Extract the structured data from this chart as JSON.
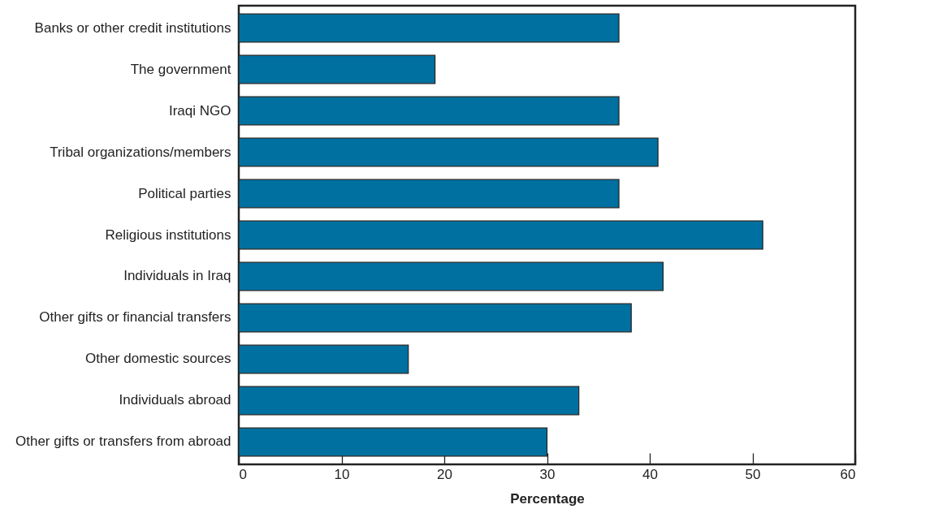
{
  "chart_data": {
    "type": "bar",
    "orientation": "horizontal",
    "xlabel": "Percentage",
    "categories": [
      "Banks or other credit institutions",
      "The government",
      "Iraqi NGO",
      "Tribal organizations/members",
      "Political parties",
      "Religious institutions",
      "Individuals in Iraq",
      "Other gifts or financial transfers",
      "Other domestic sources",
      "Individuals abroad",
      "Other gifts or transfers from abroad"
    ],
    "values": [
      37,
      19.1,
      37,
      40.8,
      37,
      51,
      41.3,
      38.2,
      16.5,
      33.1,
      30
    ],
    "color": "#0070a0",
    "xlim": [
      0,
      60
    ],
    "xticks": [
      0,
      10,
      20,
      30,
      40,
      50,
      60
    ],
    "grid": false
  }
}
